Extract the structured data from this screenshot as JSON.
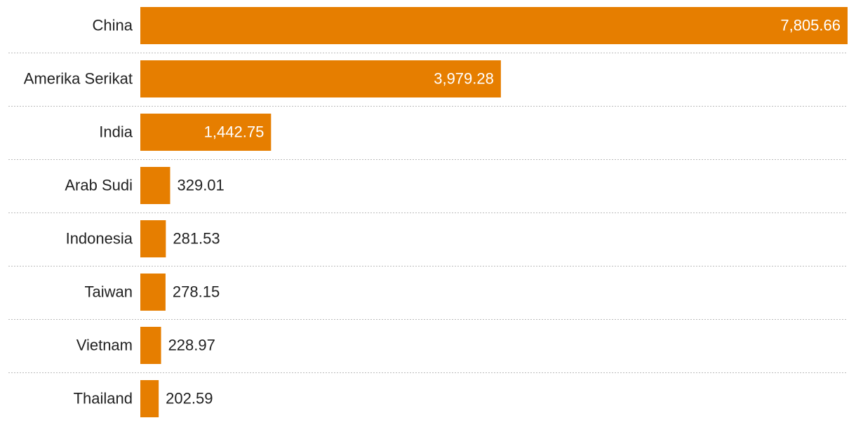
{
  "chart_data": {
    "type": "bar",
    "orientation": "horizontal",
    "categories": [
      "China",
      "Amerika Serikat",
      "India",
      "Arab Sudi",
      "Indonesia",
      "Taiwan",
      "Vietnam",
      "Thailand"
    ],
    "values": [
      7805.66,
      3979.28,
      1442.75,
      329.01,
      281.53,
      278.15,
      228.97,
      202.59
    ],
    "value_labels": [
      "7,805.66",
      "3,979.28",
      "1,442.75",
      "329.01",
      "281.53",
      "278.15",
      "228.97",
      "202.59"
    ],
    "color": "#e67e00"
  }
}
